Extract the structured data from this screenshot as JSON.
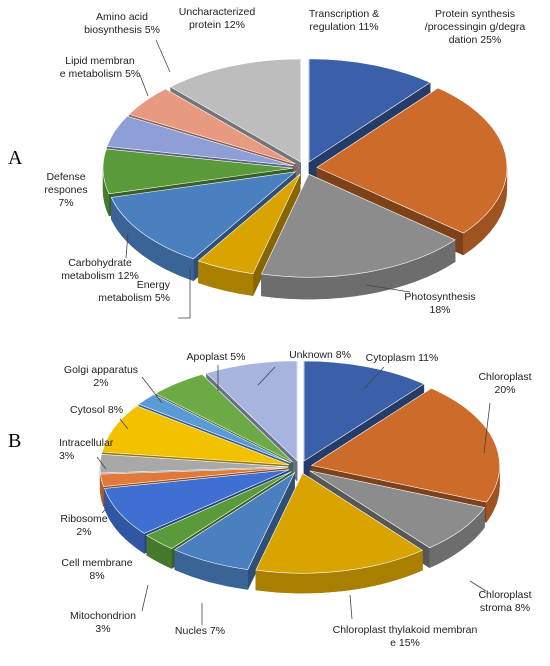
{
  "chart_data": [
    {
      "type": "pie",
      "panel": "A",
      "slices": [
        {
          "label": "Transcription & regulation 11%",
          "value": 11,
          "color": "#3B5FA8"
        },
        {
          "label": "Protein synthesis/processingin g/degradation 25%",
          "value": 25,
          "color": "#CC6B2A"
        },
        {
          "label": "Photosynthesis 18%",
          "value": 18,
          "color": "#8C8C8C"
        },
        {
          "label": "Energy metabolism 5%",
          "value": 5,
          "color": "#D9A300"
        },
        {
          "label": "Carbohydrate metabolism 12%",
          "value": 12,
          "color": "#4A7FC0"
        },
        {
          "label": "Defense respones 7%",
          "value": 7,
          "color": "#5A9A3A"
        },
        {
          "label": "Lipid membrane metabolism 5%",
          "value": 5,
          "color": "#8E9ED6"
        },
        {
          "label": "Amino acid biosynthesis 5%",
          "value": 5,
          "color": "#E89A80"
        },
        {
          "label": "Uncharacterized protein 12%",
          "value": 12,
          "color": "#BDBDBD"
        }
      ]
    },
    {
      "type": "pie",
      "panel": "B",
      "slices": [
        {
          "label": "Cytoplasm 11%",
          "value": 11,
          "color": "#3B5FA8"
        },
        {
          "label": "Chloroplast 20%",
          "value": 20,
          "color": "#CC6B2A"
        },
        {
          "label": "Chloroplast stroma 8%",
          "value": 8,
          "color": "#8C8C8C"
        },
        {
          "label": "Chloroplast thylakoid membrane 15%",
          "value": 15,
          "color": "#D9A300"
        },
        {
          "label": "Nucles 7%",
          "value": 7,
          "color": "#4A7FC0"
        },
        {
          "label": "Mitochondrion 3%",
          "value": 3,
          "color": "#5A9A3A"
        },
        {
          "label": "Cell membrane 8%",
          "value": 8,
          "color": "#3F6FD0"
        },
        {
          "label": "Ribosome 2%",
          "value": 2,
          "color": "#E07A3A"
        },
        {
          "label": "Intracellular 3%",
          "value": 3,
          "color": "#A8A8A8"
        },
        {
          "label": "Cytosol 8%",
          "value": 8,
          "color": "#F2C200"
        },
        {
          "label": "Golgi apparatus 2%",
          "value": 2,
          "color": "#5A9AD6"
        },
        {
          "label": "Apoplast 5%",
          "value": 5,
          "color": "#6BAA45"
        },
        {
          "label": "Unknown 8%",
          "value": 8,
          "color": "#A6B4DE"
        }
      ]
    }
  ],
  "panels": {
    "a_letter": "A",
    "b_letter": "B"
  }
}
